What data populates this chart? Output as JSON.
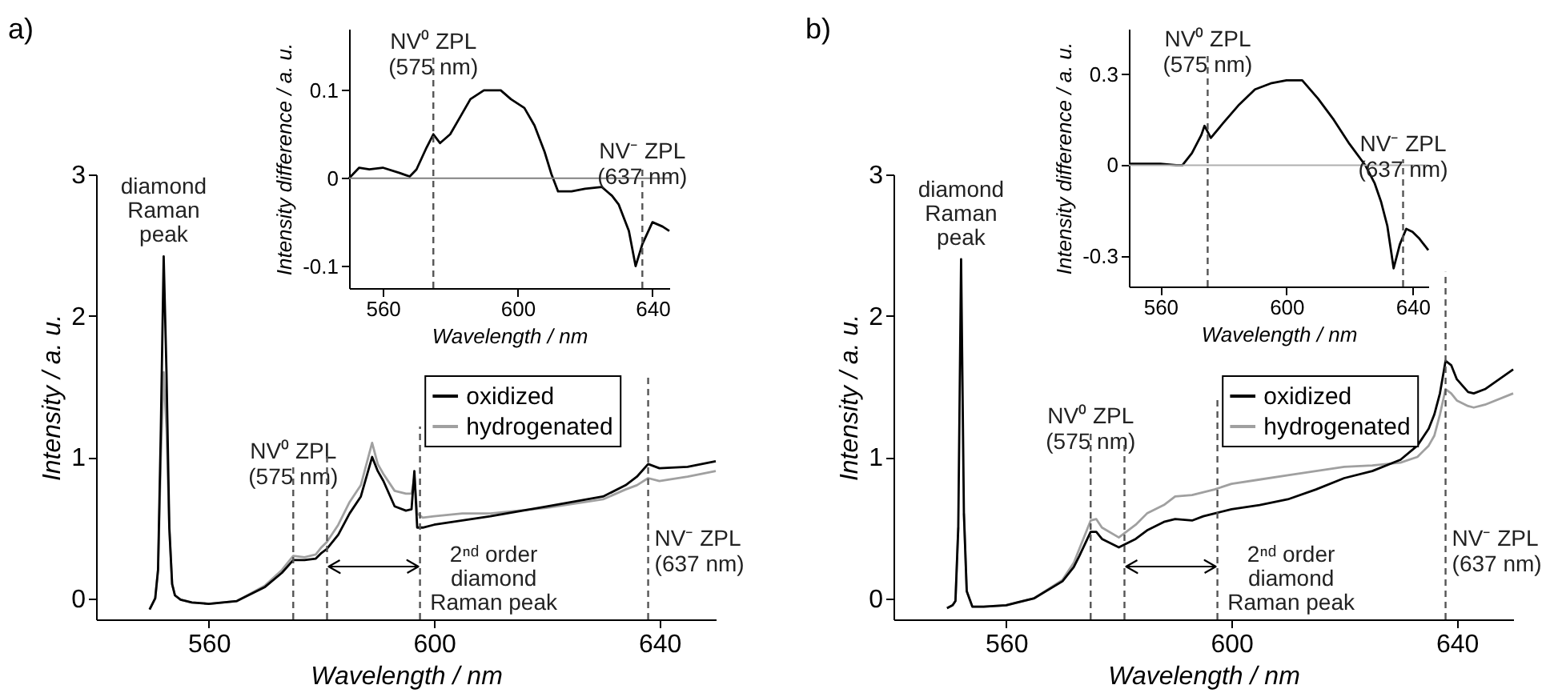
{
  "chart_data": [
    {
      "type": "line",
      "title": "a)",
      "xlabel": "Wavelength / nm",
      "ylabel": "Intensity / a. u.",
      "xlim": [
        540,
        650
      ],
      "ylim": [
        -0.15,
        3
      ],
      "xticks": [
        560,
        600,
        640
      ],
      "yticks": [
        0,
        1,
        2,
        3
      ],
      "legend": "center",
      "line_style": "solid",
      "series": [
        {
          "name": "oxidized",
          "color": "#000000",
          "x": [
            549.5,
            550.5,
            551,
            551.5,
            552,
            552.5,
            553,
            553.5,
            554,
            555,
            557,
            560,
            565,
            570,
            573,
            575,
            577,
            579,
            580,
            581,
            583,
            585,
            587,
            589,
            590,
            591,
            593,
            595,
            596,
            596.5,
            597,
            598,
            600,
            605,
            610,
            620,
            630,
            634,
            636,
            638,
            640,
            645,
            650
          ],
          "values": [
            -0.08,
            0,
            0.2,
            1.2,
            2.42,
            1.6,
            0.5,
            0.1,
            0.02,
            -0.01,
            -0.03,
            -0.04,
            -0.02,
            0.08,
            0.18,
            0.27,
            0.27,
            0.28,
            0.32,
            0.35,
            0.45,
            0.6,
            0.72,
            1.0,
            0.9,
            0.83,
            0.65,
            0.62,
            0.63,
            0.9,
            0.5,
            0.5,
            0.52,
            0.55,
            0.58,
            0.65,
            0.72,
            0.8,
            0.86,
            0.95,
            0.92,
            0.93,
            0.97
          ]
        },
        {
          "name": "hydrogenated",
          "color": "#a0a0a0",
          "x": [
            549.5,
            550.5,
            551,
            551.5,
            552,
            552.5,
            553,
            553.5,
            554,
            555,
            557,
            560,
            565,
            570,
            573,
            575,
            577,
            579,
            580,
            581,
            583,
            585,
            587,
            589,
            590,
            591,
            593,
            595,
            596,
            596.5,
            597,
            598,
            600,
            605,
            610,
            620,
            630,
            634,
            636,
            638,
            640,
            645,
            650
          ],
          "values": [
            -0.08,
            0,
            0.2,
            1.0,
            1.6,
            1.2,
            0.5,
            0.1,
            0.02,
            -0.01,
            -0.03,
            -0.04,
            -0.02,
            0.09,
            0.2,
            0.3,
            0.29,
            0.31,
            0.36,
            0.4,
            0.52,
            0.68,
            0.8,
            1.1,
            0.95,
            0.88,
            0.76,
            0.74,
            0.74,
            0.86,
            0.6,
            0.57,
            0.58,
            0.6,
            0.6,
            0.64,
            0.7,
            0.77,
            0.8,
            0.85,
            0.83,
            0.86,
            0.9
          ]
        }
      ],
      "ref_lines": [
        {
          "axis": "x",
          "value": 575,
          "label": "NV⁰ ZPL\n(575 nm)",
          "line_style": "dashed",
          "color": "#555555"
        },
        {
          "axis": "x",
          "value": 581,
          "line_style": "dashed",
          "color": "#555555"
        },
        {
          "axis": "x",
          "value": 597.5,
          "line_style": "dashed",
          "color": "#555555"
        },
        {
          "axis": "x",
          "value": 638,
          "label": "NV⁻ ZPL\n(637 nm)",
          "line_style": "dashed",
          "color": "#555555"
        }
      ],
      "annotations": [
        "diamond\nRaman\npeak",
        "2ⁿᵈ order\ndiamond\nRaman peak"
      ]
    },
    {
      "type": "line",
      "xlabel": "Wavelength / nm",
      "ylabel": "Intensity difference / a. u.",
      "xlim": [
        550,
        645
      ],
      "ylim": [
        -0.125,
        0.17
      ],
      "xticks": [
        560,
        600,
        640
      ],
      "yticks": [
        -0.1,
        0,
        0.1
      ],
      "series": [
        {
          "color": "#000000",
          "x": [
            550,
            553,
            556,
            560,
            565,
            568,
            570,
            573,
            575,
            577,
            580,
            583,
            586,
            590,
            595,
            598,
            602,
            605,
            608,
            610,
            612,
            616,
            620,
            625,
            628,
            630,
            633,
            635,
            637,
            640,
            643,
            645
          ],
          "values": [
            0,
            0.012,
            0.01,
            0.012,
            0.006,
            0.002,
            0.01,
            0.035,
            0.05,
            0.04,
            0.05,
            0.07,
            0.09,
            0.1,
            0.1,
            0.09,
            0.08,
            0.06,
            0.03,
            0.005,
            -0.015,
            -0.015,
            -0.012,
            -0.01,
            -0.02,
            -0.03,
            -0.06,
            -0.1,
            -0.075,
            -0.05,
            -0.055,
            -0.06
          ]
        }
      ],
      "ref_lines": [
        {
          "axis": "y",
          "value": 0,
          "line_style": "solid",
          "color": "#808080"
        },
        {
          "axis": "x",
          "value": 575,
          "label": "NV⁰ ZPL\n(575 nm)",
          "line_style": "dashed",
          "color": "#555555"
        },
        {
          "axis": "x",
          "value": 637,
          "label": "NV⁻ ZPL\n(637 nm)",
          "line_style": "dashed",
          "color": "#555555"
        }
      ]
    },
    {
      "type": "line",
      "title": "b)",
      "xlabel": "Wavelength / nm",
      "ylabel": "Intensity / a. u.",
      "xlim": [
        540,
        650
      ],
      "ylim": [
        -0.15,
        3
      ],
      "xticks": [
        560,
        600,
        640
      ],
      "yticks": [
        0,
        1,
        2,
        3
      ],
      "legend": "center",
      "line_style": "solid",
      "series": [
        {
          "name": "oxidized",
          "color": "#000000",
          "x": [
            549.5,
            550.5,
            551,
            551.5,
            552,
            552.5,
            553,
            554,
            556,
            560,
            565,
            570,
            572,
            573,
            575,
            576,
            577,
            580,
            583,
            585,
            588,
            590,
            593,
            595,
            597,
            600,
            605,
            610,
            615,
            620,
            625,
            630,
            633,
            635,
            636,
            637,
            638,
            639,
            640,
            642,
            643,
            645,
            650
          ],
          "values": [
            -0.07,
            -0.05,
            -0.02,
            0.5,
            2.4,
            0.6,
            0.05,
            -0.06,
            -0.06,
            -0.05,
            0.0,
            0.12,
            0.22,
            0.3,
            0.47,
            0.47,
            0.42,
            0.36,
            0.42,
            0.48,
            0.54,
            0.56,
            0.55,
            0.58,
            0.6,
            0.63,
            0.66,
            0.7,
            0.77,
            0.85,
            0.9,
            0.98,
            1.08,
            1.2,
            1.3,
            1.45,
            1.68,
            1.65,
            1.55,
            1.46,
            1.45,
            1.48,
            1.62
          ]
        },
        {
          "name": "hydrogenated",
          "color": "#a0a0a0",
          "x": [
            549.5,
            550.5,
            551,
            551.5,
            552,
            552.5,
            553,
            554,
            556,
            560,
            565,
            570,
            572,
            573,
            575,
            576,
            577,
            580,
            583,
            585,
            588,
            590,
            593,
            595,
            597,
            600,
            605,
            610,
            615,
            620,
            625,
            630,
            633,
            635,
            636,
            637,
            638,
            639,
            640,
            642,
            643,
            645,
            650
          ],
          "values": [
            -0.07,
            -0.05,
            -0.02,
            0.5,
            null,
            0.6,
            0.05,
            -0.06,
            -0.06,
            -0.05,
            0.0,
            0.13,
            0.25,
            0.35,
            0.55,
            0.56,
            0.5,
            0.43,
            0.52,
            0.6,
            0.66,
            0.72,
            0.73,
            0.75,
            0.77,
            0.81,
            0.84,
            0.87,
            0.9,
            0.93,
            0.94,
            0.96,
            1.0,
            1.08,
            1.15,
            1.3,
            1.48,
            1.45,
            1.4,
            1.36,
            1.35,
            1.37,
            1.45
          ]
        }
      ],
      "ref_lines": [
        {
          "axis": "x",
          "value": 575,
          "label": "NV⁰ ZPL\n(575 nm)",
          "line_style": "dashed",
          "color": "#555555"
        },
        {
          "axis": "x",
          "value": 581,
          "line_style": "dashed",
          "color": "#555555"
        },
        {
          "axis": "x",
          "value": 597.5,
          "line_style": "dashed",
          "color": "#555555"
        },
        {
          "axis": "x",
          "value": 638,
          "label": "NV⁻ ZPL\n(637 nm)",
          "line_style": "dashed",
          "color": "#555555"
        }
      ],
      "annotations": [
        "diamond\nRaman\npeak",
        "2ⁿᵈ order\ndiamond\nRaman peak"
      ]
    },
    {
      "type": "line",
      "xlabel": "Wavelength / nm",
      "ylabel": "Intensity difference / a. u.",
      "xlim": [
        550,
        645
      ],
      "ylim": [
        -0.4,
        0.45
      ],
      "xticks": [
        560,
        600,
        640
      ],
      "yticks": [
        -0.3,
        0,
        0.3
      ],
      "series": [
        {
          "color": "#000000",
          "x": [
            550,
            555,
            560,
            565,
            567,
            570,
            573,
            574,
            576,
            580,
            585,
            590,
            595,
            600,
            605,
            610,
            615,
            620,
            625,
            628,
            630,
            632,
            634,
            636,
            638,
            640,
            642,
            645
          ],
          "values": [
            0.005,
            0.005,
            0.005,
            0.0,
            0.0,
            0.04,
            0.1,
            0.13,
            0.09,
            0.14,
            0.2,
            0.25,
            0.27,
            0.28,
            0.28,
            0.22,
            0.15,
            0.07,
            0.0,
            -0.06,
            -0.12,
            -0.2,
            -0.34,
            -0.26,
            -0.21,
            -0.22,
            -0.24,
            -0.28
          ]
        }
      ],
      "ref_lines": [
        {
          "axis": "y",
          "value": 0,
          "line_style": "solid",
          "color": "#b0b0b0"
        },
        {
          "axis": "x",
          "value": 575,
          "label": "NV⁰ ZPL\n(575 nm)",
          "line_style": "dashed",
          "color": "#555555"
        },
        {
          "axis": "x",
          "value": 637,
          "label": "NV⁻ ZPL\n(637 nm)",
          "line_style": "dashed",
          "color": "#555555"
        }
      ]
    }
  ]
}
